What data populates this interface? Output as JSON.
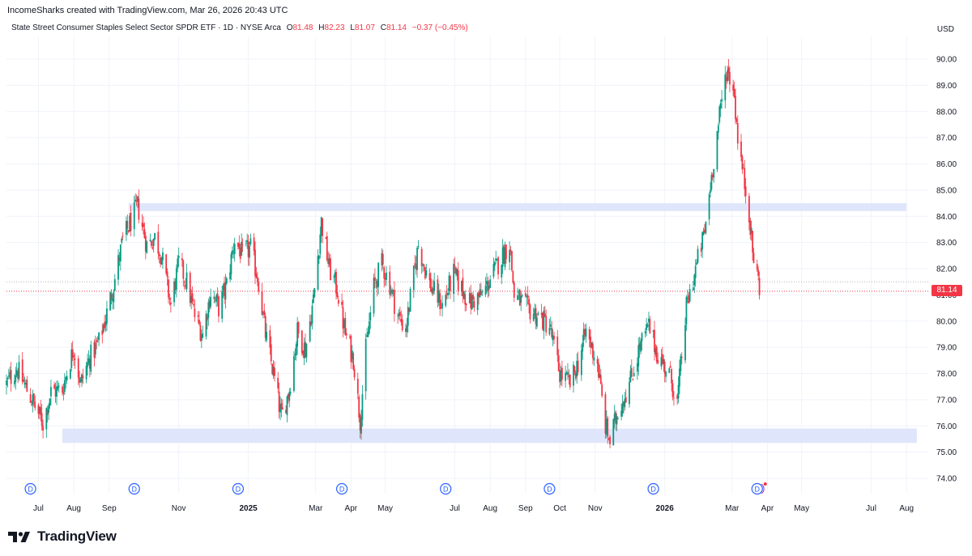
{
  "header": {
    "attribution": "IncomeSharks created with TradingView.com, Mar 26, 2026 20:43 UTC",
    "symbol": "State Street Consumer Staples Select Sector SPDR ETF · 1D · NYSE Arca",
    "o_label": "O",
    "o_value": "81.48",
    "h_label": "H",
    "h_value": "82.23",
    "l_label": "L",
    "l_value": "81.07",
    "c_label": "C",
    "c_value": "81.14",
    "change": "−0.37 (−0.45%)",
    "currency": "USD"
  },
  "last_price_tag": "81.14",
  "brand": {
    "name": "TradingView"
  },
  "colors": {
    "up": "#089981",
    "down": "#f23645",
    "zone": "#dfe6fb",
    "grid": "#f0f3fa",
    "marker": "#2962ff"
  },
  "chart_data": {
    "type": "candlestick",
    "ylim": [
      73.5,
      90.5
    ],
    "yticks": [
      "90.00",
      "89.00",
      "88.00",
      "87.00",
      "86.00",
      "85.00",
      "84.00",
      "83.00",
      "82.00",
      "81.00",
      "80.00",
      "79.00",
      "78.00",
      "77.00",
      "76.00",
      "75.00",
      "74.00"
    ],
    "xticks": [
      {
        "label": "Jul",
        "date": "2024-07-01",
        "year": false
      },
      {
        "label": "Aug",
        "date": "2024-08-01",
        "year": false
      },
      {
        "label": "Sep",
        "date": "2024-09-01",
        "year": false
      },
      {
        "label": "Nov",
        "date": "2024-11-01",
        "year": false
      },
      {
        "label": "2025",
        "date": "2025-01-01",
        "year": true
      },
      {
        "label": "Mar",
        "date": "2025-03-01",
        "year": false
      },
      {
        "label": "Apr",
        "date": "2025-04-01",
        "year": false
      },
      {
        "label": "May",
        "date": "2025-05-01",
        "year": false
      },
      {
        "label": "Jul",
        "date": "2025-07-01",
        "year": false
      },
      {
        "label": "Aug",
        "date": "2025-08-01",
        "year": false
      },
      {
        "label": "Sep",
        "date": "2025-09-01",
        "year": false
      },
      {
        "label": "Oct",
        "date": "2025-10-01",
        "year": false
      },
      {
        "label": "Nov",
        "date": "2025-11-01",
        "year": false
      },
      {
        "label": "2026",
        "date": "2026-01-01",
        "year": true
      },
      {
        "label": "Mar",
        "date": "2026-03-01",
        "year": false
      },
      {
        "label": "Apr",
        "date": "2026-04-01",
        "year": false
      },
      {
        "label": "May",
        "date": "2026-05-01",
        "year": false
      },
      {
        "label": "Jul",
        "date": "2026-07-01",
        "year": false
      },
      {
        "label": "Aug",
        "date": "2026-08-01",
        "year": false
      }
    ],
    "price_path": [
      [
        "2024-06-03",
        77.6
      ],
      [
        "2024-06-12",
        78.2
      ],
      [
        "2024-06-24",
        77.1
      ],
      [
        "2024-07-05",
        76.1
      ],
      [
        "2024-07-12",
        77.3
      ],
      [
        "2024-07-22",
        77.4
      ],
      [
        "2024-08-01",
        79.0
      ],
      [
        "2024-08-07",
        77.6
      ],
      [
        "2024-08-15",
        78.6
      ],
      [
        "2024-08-23",
        79.2
      ],
      [
        "2024-08-30",
        80.3
      ],
      [
        "2024-09-06",
        81.6
      ],
      [
        "2024-09-13",
        83.1
      ],
      [
        "2024-09-20",
        83.8
      ],
      [
        "2024-09-26",
        84.4
      ],
      [
        "2024-10-04",
        82.9
      ],
      [
        "2024-10-11",
        83.2
      ],
      [
        "2024-10-17",
        82.5
      ],
      [
        "2024-10-25",
        80.6
      ],
      [
        "2024-11-01",
        82.2
      ],
      [
        "2024-11-08",
        81.5
      ],
      [
        "2024-11-15",
        80.2
      ],
      [
        "2024-11-22",
        79.5
      ],
      [
        "2024-11-29",
        81.1
      ],
      [
        "2024-12-06",
        80.5
      ],
      [
        "2024-12-13",
        81.4
      ],
      [
        "2024-12-20",
        83.1
      ],
      [
        "2024-12-27",
        82.5
      ],
      [
        "2025-01-03",
        82.8
      ],
      [
        "2025-01-10",
        81.5
      ],
      [
        "2025-01-16",
        79.5
      ],
      [
        "2025-01-23",
        78.0
      ],
      [
        "2025-01-30",
        76.3
      ],
      [
        "2025-02-06",
        77.4
      ],
      [
        "2025-02-13",
        79.6
      ],
      [
        "2025-02-20",
        78.9
      ],
      [
        "2025-02-27",
        80.8
      ],
      [
        "2025-03-06",
        83.8
      ],
      [
        "2025-03-13",
        82.0
      ],
      [
        "2025-03-20",
        81.2
      ],
      [
        "2025-03-27",
        79.5
      ],
      [
        "2025-04-03",
        78.6
      ],
      [
        "2025-04-09",
        76.2
      ],
      [
        "2025-04-14",
        78.9
      ],
      [
        "2025-04-21",
        81.3
      ],
      [
        "2025-04-28",
        82.2
      ],
      [
        "2025-05-05",
        81.4
      ],
      [
        "2025-05-12",
        80.2
      ],
      [
        "2025-05-19",
        79.7
      ],
      [
        "2025-05-30",
        82.9
      ],
      [
        "2025-06-09",
        81.4
      ],
      [
        "2025-06-20",
        80.6
      ],
      [
        "2025-06-30",
        81.8
      ],
      [
        "2025-07-14",
        80.7
      ],
      [
        "2025-07-25",
        81.0
      ],
      [
        "2025-08-08",
        82.2
      ],
      [
        "2025-08-18",
        83.0
      ],
      [
        "2025-08-22",
        81.0
      ],
      [
        "2025-09-02",
        80.5
      ],
      [
        "2025-09-12",
        80.2
      ],
      [
        "2025-09-22",
        79.8
      ],
      [
        "2025-10-01",
        78.0
      ],
      [
        "2025-10-10",
        77.6
      ],
      [
        "2025-10-17",
        78.4
      ],
      [
        "2025-10-24",
        79.6
      ],
      [
        "2025-11-03",
        78.4
      ],
      [
        "2025-11-10",
        76.0
      ],
      [
        "2025-11-14",
        75.4
      ],
      [
        "2025-11-21",
        76.6
      ],
      [
        "2025-12-01",
        77.6
      ],
      [
        "2025-12-10",
        79.0
      ],
      [
        "2025-12-18",
        79.8
      ],
      [
        "2025-12-26",
        78.7
      ],
      [
        "2026-01-05",
        78.0
      ],
      [
        "2026-01-12",
        76.9
      ],
      [
        "2026-01-20",
        80.5
      ],
      [
        "2026-01-28",
        82.0
      ],
      [
        "2026-02-05",
        83.4
      ],
      [
        "2026-02-10",
        85.2
      ],
      [
        "2026-02-17",
        87.5
      ],
      [
        "2026-02-24",
        89.6
      ],
      [
        "2026-03-02",
        89.0
      ],
      [
        "2026-03-06",
        87.1
      ],
      [
        "2026-03-11",
        85.5
      ],
      [
        "2026-03-16",
        84.2
      ],
      [
        "2026-03-19",
        82.6
      ],
      [
        "2026-03-26",
        81.14
      ]
    ],
    "zones": [
      {
        "date_start": "2024-09-18",
        "date_end": "2026-08-01",
        "low": 84.2,
        "high": 84.5
      },
      {
        "date_start": "2024-07-22",
        "date_end": "2026-08-10",
        "low": 75.35,
        "high": 75.9
      }
    ],
    "price_lines": [
      {
        "value": 81.5,
        "style": "dotted-grey"
      },
      {
        "value": 81.14,
        "style": "dotted-red"
      }
    ],
    "dividend_dates": [
      "2024-06-24",
      "2024-09-23",
      "2024-12-23",
      "2025-03-24",
      "2025-06-23",
      "2025-09-22",
      "2025-12-22",
      "2026-03-23"
    ]
  }
}
